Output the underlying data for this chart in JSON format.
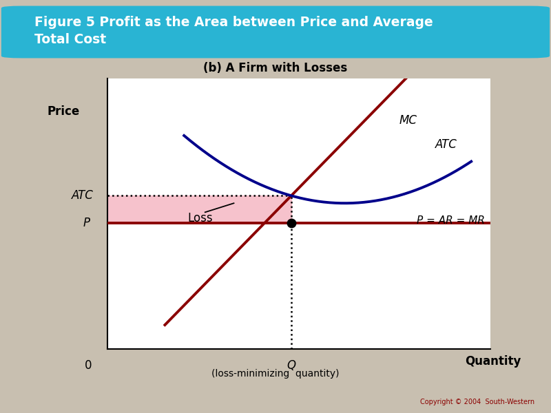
{
  "title_box_text": "Figure 5 Profit as the Area between Price and Average\nTotal Cost",
  "subtitle": "(b) A Firm with Losses",
  "bg_color": "#c8bfb0",
  "title_box_color": "#29b4d3",
  "title_text_color": "#ffffff",
  "plot_bg_color": "#ffffff",
  "ylabel": "Price",
  "xlabel": "Quantity",
  "x_zero_label": "0",
  "q_label": "Q",
  "q_sublabel": "(loss-minimizing  quantity)",
  "P_label": "P",
  "ATC_label": "ATC",
  "MR_label": "P = AR = MR",
  "MC_label": "MC",
  "ATC_curve_label": "ATC",
  "loss_label": "Loss",
  "mc_color": "#8b0000",
  "atc_color": "#00008b",
  "mr_color": "#8b0000",
  "loss_fill_color": "#f5b8c4",
  "dot_color": "#000000",
  "copyright_text": "Copyright © 2004  South-Western",
  "x_Q": 4.8,
  "y_P": 4.2,
  "y_ATC_at_Q": 5.1,
  "x_range": [
    0,
    10
  ],
  "y_range": [
    0,
    9
  ]
}
